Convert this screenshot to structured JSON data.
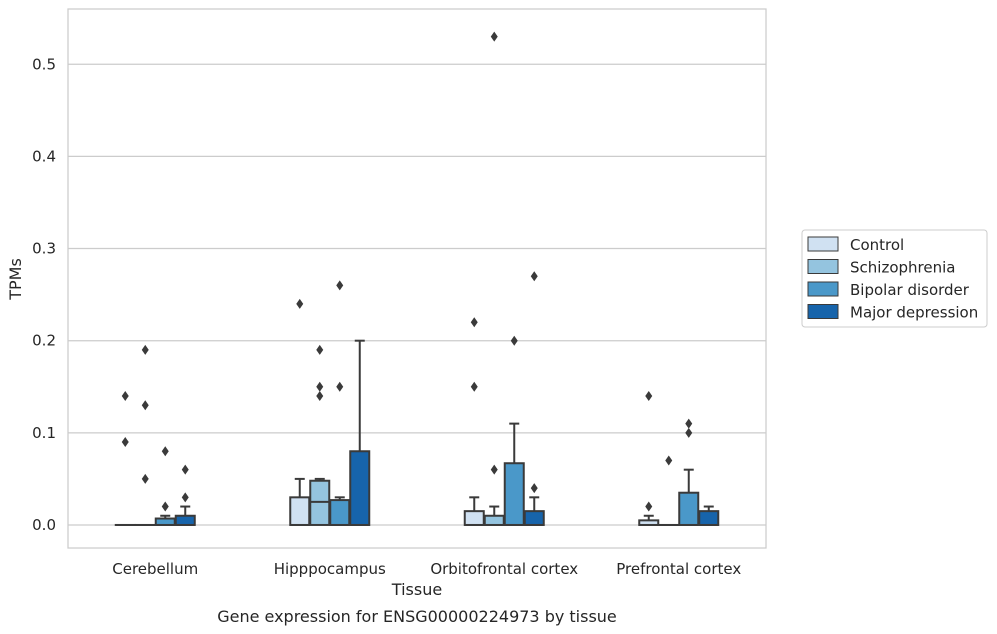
{
  "chart_data": {
    "type": "box",
    "title": "",
    "caption": "Gene expression for ENSG00000224973 by tissue",
    "xlabel": "Tissue",
    "ylabel": "TPMs",
    "ylim": [
      -0.025,
      0.56
    ],
    "yticks": [
      "0.0",
      "0.1",
      "0.2",
      "0.3",
      "0.4",
      "0.5"
    ],
    "ytick_values": [
      0.0,
      0.1,
      0.2,
      0.3,
      0.4,
      0.5
    ],
    "grid": "horizontal",
    "legend_position": "right",
    "categories": [
      "Cerebellum",
      "Hipppocampus",
      "Orbitofrontal cortex",
      "Prefrontal cortex"
    ],
    "series": [
      {
        "name": "Control",
        "color": "#d0e1f2",
        "boxes": [
          {
            "q1": 0.0,
            "median": 0.0,
            "q3": 0.0,
            "whisker_low": 0.0,
            "whisker_high": 0.0,
            "outliers": [
              0.14,
              0.09
            ]
          },
          {
            "q1": 0.0,
            "median": 0.0,
            "q3": 0.03,
            "whisker_low": 0.0,
            "whisker_high": 0.05,
            "outliers": [
              0.24
            ]
          },
          {
            "q1": 0.0,
            "median": 0.0,
            "q3": 0.015,
            "whisker_low": 0.0,
            "whisker_high": 0.03,
            "outliers": [
              0.22,
              0.15
            ]
          },
          {
            "q1": 0.0,
            "median": 0.0,
            "q3": 0.005,
            "whisker_low": 0.0,
            "whisker_high": 0.01,
            "outliers": [
              0.14,
              0.02
            ]
          }
        ]
      },
      {
        "name": "Schizophrenia",
        "color": "#94c4df",
        "boxes": [
          {
            "q1": 0.0,
            "median": 0.0,
            "q3": 0.0,
            "whisker_low": 0.0,
            "whisker_high": 0.0,
            "outliers": [
              0.19,
              0.13,
              0.05
            ]
          },
          {
            "q1": 0.0,
            "median": 0.025,
            "q3": 0.048,
            "whisker_low": 0.0,
            "whisker_high": 0.05,
            "outliers": [
              0.19,
              0.15,
              0.14
            ]
          },
          {
            "q1": 0.0,
            "median": 0.0,
            "q3": 0.01,
            "whisker_low": 0.0,
            "whisker_high": 0.02,
            "outliers": [
              0.53,
              0.06
            ]
          },
          {
            "q1": 0.0,
            "median": 0.0,
            "q3": 0.0,
            "whisker_low": 0.0,
            "whisker_high": 0.0,
            "outliers": [
              0.07
            ]
          }
        ]
      },
      {
        "name": "Bipolar disorder",
        "color": "#4a98c9",
        "boxes": [
          {
            "q1": 0.0,
            "median": 0.0,
            "q3": 0.007,
            "whisker_low": 0.0,
            "whisker_high": 0.01,
            "outliers": [
              0.08,
              0.02
            ]
          },
          {
            "q1": 0.0,
            "median": 0.0,
            "q3": 0.027,
            "whisker_low": 0.0,
            "whisker_high": 0.03,
            "outliers": [
              0.26,
              0.15
            ]
          },
          {
            "q1": 0.0,
            "median": 0.0,
            "q3": 0.067,
            "whisker_low": 0.0,
            "whisker_high": 0.11,
            "outliers": [
              0.2
            ]
          },
          {
            "q1": 0.0,
            "median": 0.0,
            "q3": 0.035,
            "whisker_low": 0.0,
            "whisker_high": 0.06,
            "outliers": [
              0.11,
              0.1
            ]
          }
        ]
      },
      {
        "name": "Major depression",
        "color": "#1764ab",
        "boxes": [
          {
            "q1": 0.0,
            "median": 0.0,
            "q3": 0.01,
            "whisker_low": 0.0,
            "whisker_high": 0.02,
            "outliers": [
              0.06,
              0.03
            ]
          },
          {
            "q1": 0.0,
            "median": 0.0,
            "q3": 0.08,
            "whisker_low": 0.0,
            "whisker_high": 0.2,
            "outliers": []
          },
          {
            "q1": 0.0,
            "median": 0.0,
            "q3": 0.015,
            "whisker_low": 0.0,
            "whisker_high": 0.03,
            "outliers": [
              0.27,
              0.04
            ]
          },
          {
            "q1": 0.0,
            "median": 0.0,
            "q3": 0.015,
            "whisker_low": 0.0,
            "whisker_high": 0.02,
            "outliers": []
          }
        ]
      }
    ]
  }
}
